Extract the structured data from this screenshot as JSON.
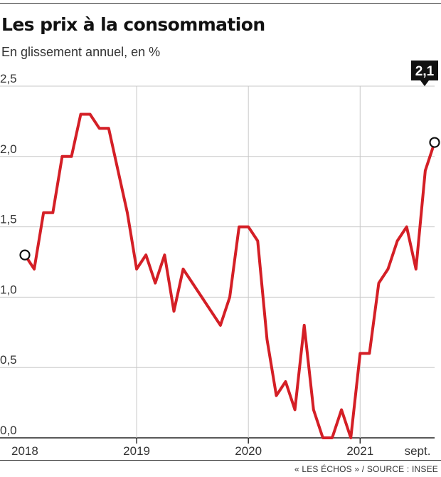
{
  "header": {
    "title": "Les prix à la consommation",
    "subtitle": "En glissement annuel, en %"
  },
  "footer": {
    "source": "« LES ÉCHOS » / SOURCE : INSEE"
  },
  "colors": {
    "line": "#d41f26",
    "grid": "#c8c8c8",
    "axis": "#222222",
    "label_bg": "#111111",
    "label_text": "#ffffff"
  },
  "chart_data": {
    "type": "line",
    "title": "Les prix à la consommation",
    "subtitle": "En glissement annuel, en %",
    "xlabel": "",
    "ylabel": "",
    "ylim": [
      0,
      2.5
    ],
    "yticks": [
      {
        "value": 0,
        "label": "0,0"
      },
      {
        "value": 0.5,
        "label": "0,5"
      },
      {
        "value": 1,
        "label": "1,0"
      },
      {
        "value": 1.5,
        "label": "1,5"
      },
      {
        "value": 2,
        "label": "2,0"
      },
      {
        "value": 2.5,
        "label": "2,5"
      }
    ],
    "xticks": [
      {
        "index": 0,
        "label": "2018"
      },
      {
        "index": 12,
        "label": "2019"
      },
      {
        "index": 24,
        "label": "2020"
      },
      {
        "index": 36,
        "label": "2021"
      },
      {
        "index": 44,
        "label": "sept."
      }
    ],
    "grid": true,
    "series": [
      {
        "values": [
          1.3,
          1.2,
          1.6,
          1.6,
          2.0,
          2.0,
          2.3,
          2.3,
          2.2,
          2.2,
          1.9,
          1.6,
          1.2,
          1.3,
          1.1,
          1.3,
          0.9,
          1.2,
          1.1,
          1.0,
          0.9,
          0.8,
          1.0,
          1.5,
          1.5,
          1.4,
          0.7,
          0.3,
          0.4,
          0.2,
          0.8,
          0.2,
          0.0,
          0.0,
          0.2,
          0.0,
          0.6,
          0.6,
          1.1,
          1.2,
          1.4,
          1.5,
          1.2,
          1.9,
          2.1
        ]
      }
    ],
    "end_label": "2,1"
  }
}
